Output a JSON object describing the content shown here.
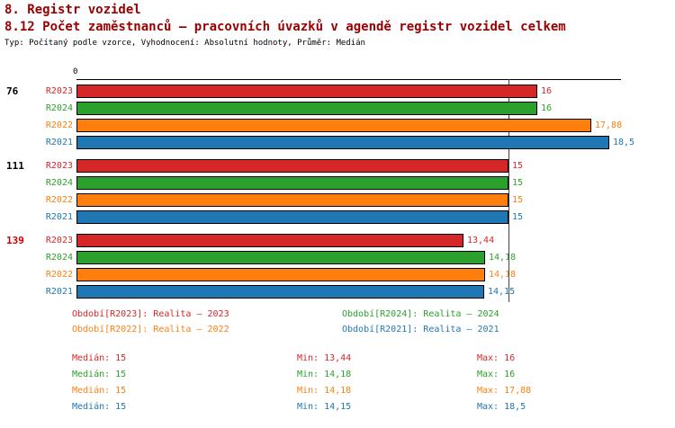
{
  "header": {
    "title": "8. Registr vozidel",
    "subtitle": "8.12 Počet zaměstnanců – pracovních úvazků v agendě registr vozidel celkem",
    "meta": "Typ: Počítaný podle vzorce, Vyhodnocení: Absolutní hodnoty, Průměr: Medián"
  },
  "chart_data": {
    "type": "bar",
    "orientation": "horizontal",
    "x_origin_label": "0",
    "xlim": [
      0,
      18.9
    ],
    "median_line": 15,
    "grid": false,
    "legend_position": "bottom",
    "groups": [
      {
        "label": "76",
        "label_color": "#000000",
        "bars": [
          {
            "name": "R2023",
            "value": 16,
            "display": "16",
            "color": "#d62728"
          },
          {
            "name": "R2024",
            "value": 16,
            "display": "16",
            "color": "#2ca02c"
          },
          {
            "name": "R2022",
            "value": 17.88,
            "display": "17,88",
            "color": "#ff7f0e"
          },
          {
            "name": "R2021",
            "value": 18.5,
            "display": "18,5",
            "color": "#1f77b4"
          }
        ]
      },
      {
        "label": "111",
        "label_color": "#000000",
        "bars": [
          {
            "name": "R2023",
            "value": 15,
            "display": "15",
            "color": "#d62728"
          },
          {
            "name": "R2024",
            "value": 15,
            "display": "15",
            "color": "#2ca02c"
          },
          {
            "name": "R2022",
            "value": 15,
            "display": "15",
            "color": "#ff7f0e"
          },
          {
            "name": "R2021",
            "value": 15,
            "display": "15",
            "color": "#1f77b4"
          }
        ]
      },
      {
        "label": "139",
        "label_color": "#cc0000",
        "bars": [
          {
            "name": "R2023",
            "value": 13.44,
            "display": "13,44",
            "color": "#d62728"
          },
          {
            "name": "R2024",
            "value": 14.18,
            "display": "14,18",
            "color": "#2ca02c"
          },
          {
            "name": "R2022",
            "value": 14.18,
            "display": "14,18",
            "color": "#ff7f0e"
          },
          {
            "name": "R2021",
            "value": 14.15,
            "display": "14,15",
            "color": "#1f77b4"
          }
        ]
      }
    ],
    "legend": [
      {
        "label": "Období[R2023]: Realita – 2023",
        "color": "#d62728"
      },
      {
        "label": "Období[R2024]: Realita – 2024",
        "color": "#2ca02c"
      },
      {
        "label": "Období[R2022]: Realita – 2022",
        "color": "#ff7f0e"
      },
      {
        "label": "Období[R2021]: Realita – 2021",
        "color": "#1f77b4"
      }
    ],
    "stats": [
      {
        "median": "Medián: 15",
        "min": "Min: 13,44",
        "max": "Max: 16",
        "color": "#d62728"
      },
      {
        "median": "Medián: 15",
        "min": "Min: 14,18",
        "max": "Max: 16",
        "color": "#2ca02c"
      },
      {
        "median": "Medián: 15",
        "min": "Min: 14,18",
        "max": "Max: 17,88",
        "color": "#ff7f0e"
      },
      {
        "median": "Medián: 15",
        "min": "Min: 14,15",
        "max": "Max: 18,5",
        "color": "#1f77b4"
      }
    ]
  }
}
